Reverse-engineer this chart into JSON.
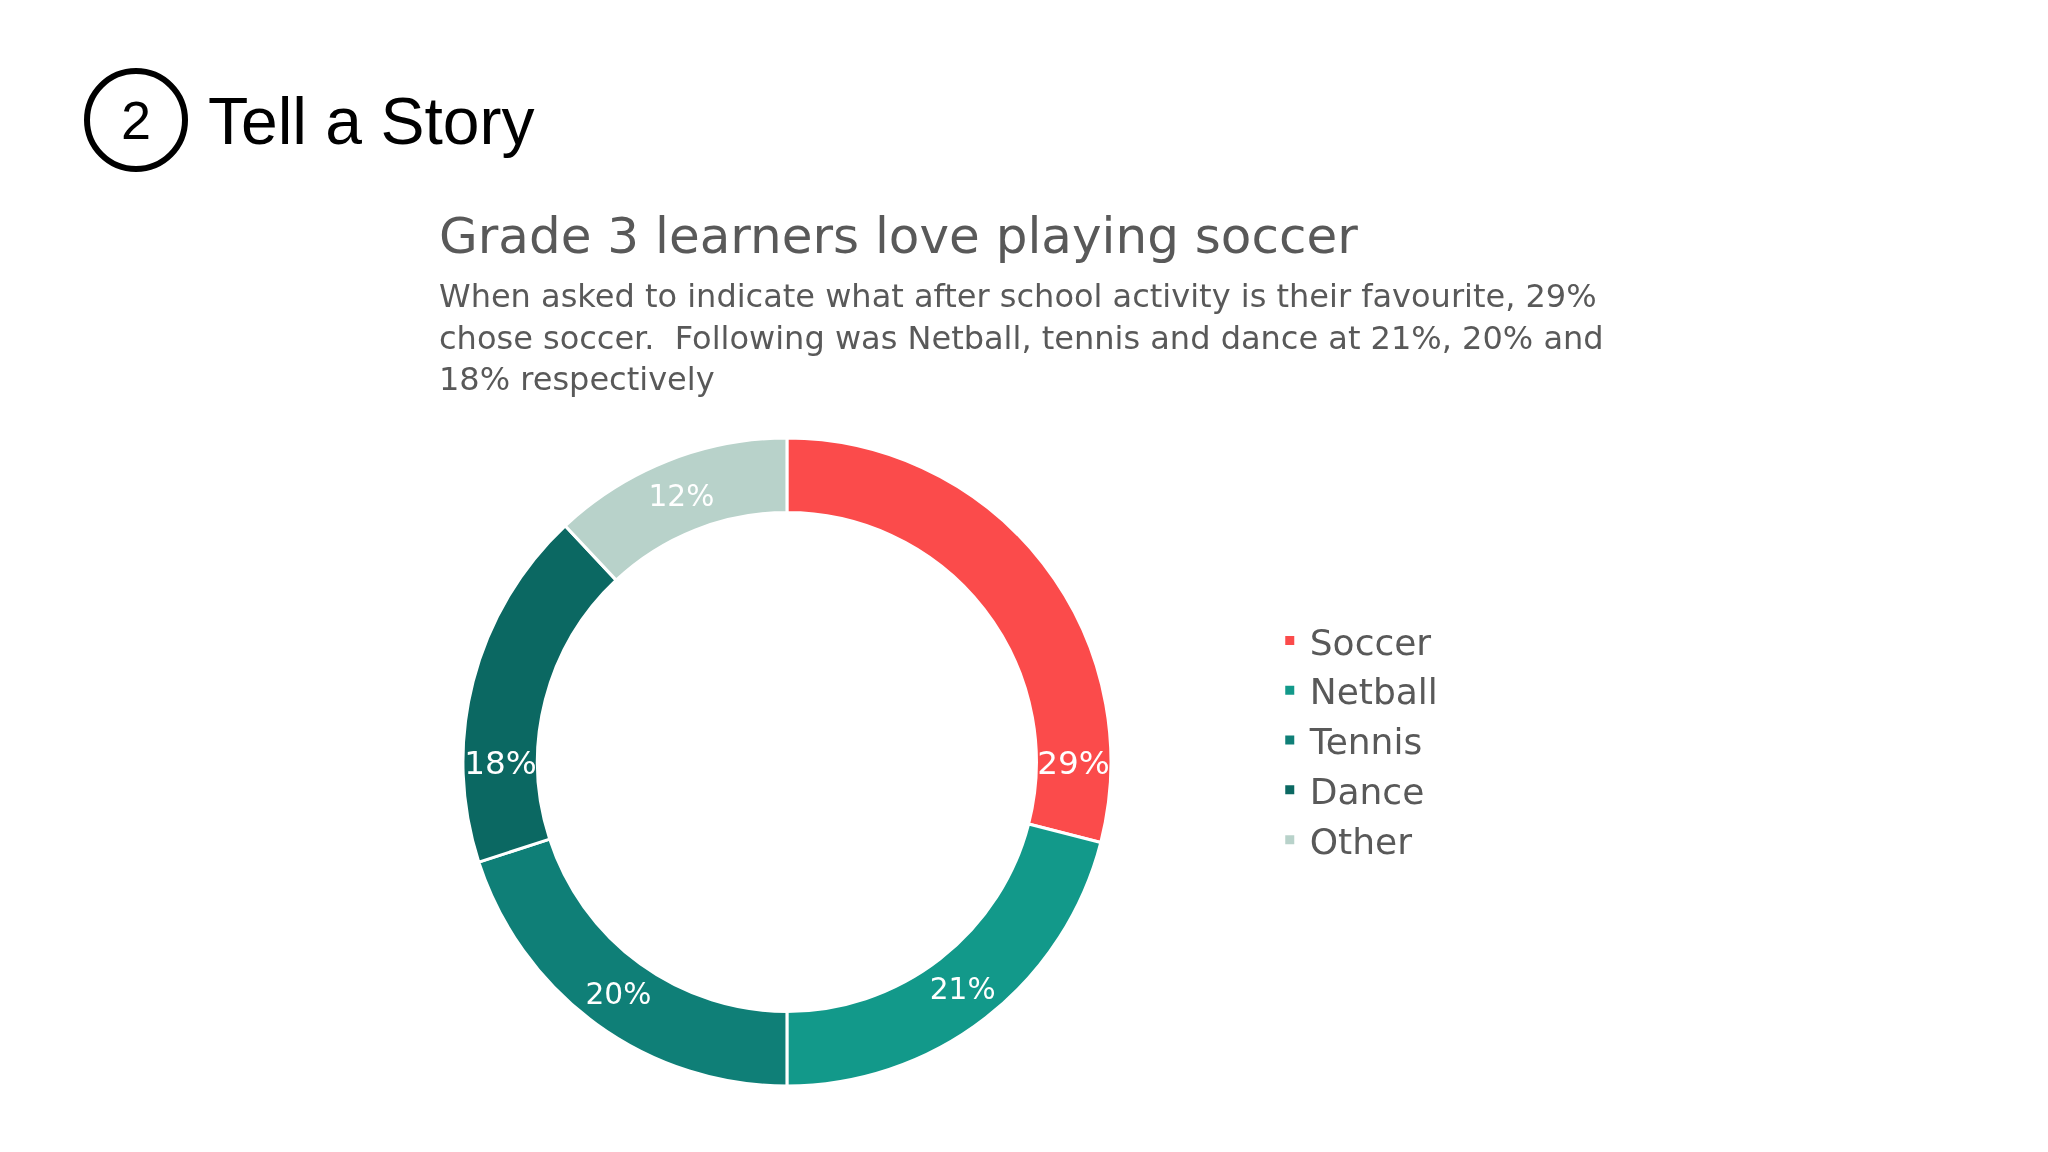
{
  "chart_data": {
    "type": "donut",
    "title": "Grade 3 learners love playing soccer",
    "subtitle": "When asked to indicate what after school activity is their favourite, 29%\nchose soccer.  Following was Netball, tennis and dance at 21%, 20% and\n18% respectively",
    "annotations": [
      "2",
      "Tell a Story"
    ],
    "categories": [
      "Soccer",
      "Netball",
      "Tennis",
      "Dance",
      "Other"
    ],
    "values": [
      29,
      21,
      20,
      18,
      12
    ],
    "value_labels": [
      "29%",
      "21%",
      "20%",
      "18%",
      "12%"
    ],
    "colors": [
      "#fb4b4b",
      "#12998a",
      "#0f7f77",
      "#0b6862",
      "#b8d2ca"
    ],
    "legend": "right"
  }
}
